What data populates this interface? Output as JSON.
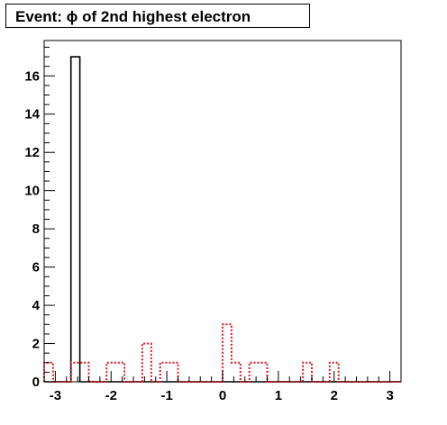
{
  "chart_data": {
    "type": "bar",
    "title": "Event: ϕ of 2nd highest electron",
    "xlabel": "",
    "ylabel": "",
    "xlim": [
      -3.2,
      3.2
    ],
    "ylim": [
      0,
      17.85
    ],
    "x_ticks": [
      -3,
      -2,
      -1,
      0,
      1,
      2,
      3
    ],
    "x_tick_labels": [
      "-3",
      "-2",
      "-1",
      "0",
      "1",
      "2",
      "3"
    ],
    "y_ticks": [
      0,
      2,
      4,
      6,
      8,
      10,
      12,
      14,
      16
    ],
    "y_tick_labels": [
      "0",
      "2",
      "4",
      "6",
      "8",
      "10",
      "12",
      "14",
      "16"
    ],
    "grid": false,
    "legend": "none",
    "bins": {
      "low": -3.2,
      "high": 3.2,
      "count": 40
    },
    "series": [
      {
        "style": "solid",
        "color": "#000000",
        "values": [
          0,
          0,
          0,
          17,
          0,
          0,
          0,
          0,
          0,
          0,
          0,
          0,
          0,
          0,
          0,
          0,
          0,
          0,
          0,
          0,
          0,
          0,
          0,
          0,
          0,
          0,
          0,
          0,
          0,
          0,
          0,
          0,
          0,
          0,
          0,
          0,
          0,
          0,
          0,
          0
        ]
      },
      {
        "style": "dotted",
        "color": "#e0141e",
        "values": [
          1,
          0,
          0,
          1,
          1,
          0,
          0,
          1,
          1,
          0,
          0,
          2,
          0,
          1,
          1,
          0,
          0,
          0,
          0,
          0,
          3,
          1,
          0,
          1,
          1,
          0,
          0,
          0,
          0,
          1,
          0,
          0,
          1,
          0,
          0,
          0,
          0,
          0,
          0,
          0
        ]
      }
    ]
  }
}
